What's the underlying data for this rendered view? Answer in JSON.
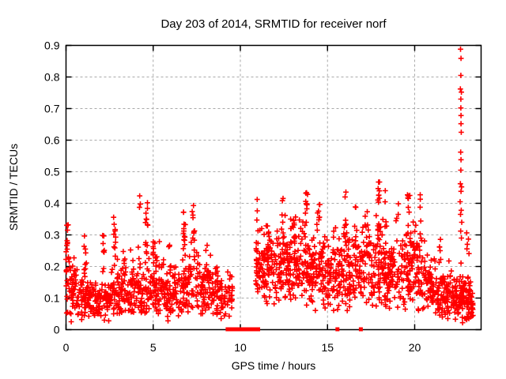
{
  "chart_data": {
    "type": "scatter",
    "title": "Day 203 of 2014, SRMTID for receiver norf",
    "xlabel": "GPS time / hours",
    "ylabel": "SRMTID / TECUs",
    "xlim": [
      0,
      23.81
    ],
    "ylim": [
      0,
      0.9
    ],
    "x_ticks": [
      0,
      5,
      10,
      15,
      20
    ],
    "y_ticks": [
      0,
      0.1,
      0.2,
      0.3,
      0.4,
      0.5,
      0.6,
      0.7,
      0.8,
      0.9
    ],
    "grid": "dashed",
    "legend": "none",
    "marker": "plus",
    "marker_color": "#ff0000",
    "grid_color": "#a9a9a9",
    "axis_color": "#000000",
    "background_color": "#ffffff",
    "seed": 7,
    "clusters": [
      [
        0.0,
        0.6,
        50,
        0.13,
        0.05,
        0.05,
        0.27
      ],
      [
        0.6,
        1.6,
        78,
        0.105,
        0.035,
        0.04,
        0.22
      ],
      [
        1.6,
        2.6,
        78,
        0.1,
        0.035,
        0.04,
        0.22
      ],
      [
        2.6,
        3.6,
        78,
        0.115,
        0.04,
        0.05,
        0.24
      ],
      [
        3.6,
        4.6,
        80,
        0.13,
        0.05,
        0.05,
        0.3
      ],
      [
        4.6,
        5.6,
        80,
        0.135,
        0.05,
        0.05,
        0.3
      ],
      [
        5.6,
        6.6,
        78,
        0.115,
        0.04,
        0.04,
        0.26
      ],
      [
        6.6,
        7.6,
        80,
        0.14,
        0.05,
        0.05,
        0.3
      ],
      [
        7.6,
        8.6,
        78,
        0.125,
        0.045,
        0.05,
        0.28
      ],
      [
        8.6,
        9.55,
        66,
        0.105,
        0.035,
        0.04,
        0.2
      ],
      [
        10.88,
        12.0,
        100,
        0.2,
        0.06,
        0.07,
        0.36
      ],
      [
        12.0,
        13.0,
        95,
        0.21,
        0.065,
        0.07,
        0.37
      ],
      [
        13.0,
        14.0,
        92,
        0.2,
        0.06,
        0.07,
        0.36
      ],
      [
        14.0,
        15.0,
        90,
        0.19,
        0.06,
        0.06,
        0.35
      ],
      [
        15.0,
        16.0,
        88,
        0.18,
        0.055,
        0.06,
        0.34
      ],
      [
        16.0,
        17.0,
        88,
        0.19,
        0.06,
        0.06,
        0.35
      ],
      [
        17.0,
        18.2,
        105,
        0.215,
        0.07,
        0.07,
        0.38
      ],
      [
        18.2,
        19.2,
        88,
        0.17,
        0.055,
        0.05,
        0.33
      ],
      [
        19.2,
        20.2,
        92,
        0.195,
        0.06,
        0.06,
        0.35
      ],
      [
        20.2,
        21.2,
        82,
        0.15,
        0.05,
        0.05,
        0.3
      ],
      [
        21.2,
        22.3,
        98,
        0.115,
        0.04,
        0.04,
        0.24
      ],
      [
        22.3,
        23.35,
        112,
        0.105,
        0.04,
        0.03,
        0.24
      ]
    ],
    "streaks": [
      [
        0.08,
        14,
        0.18,
        0.335
      ],
      [
        1.1,
        9,
        0.17,
        0.3
      ],
      [
        2.15,
        8,
        0.17,
        0.31
      ],
      [
        2.8,
        11,
        0.2,
        0.405
      ],
      [
        3.35,
        6,
        0.17,
        0.28
      ],
      [
        4.2,
        3,
        0.38,
        0.44
      ],
      [
        4.62,
        13,
        0.22,
        0.425
      ],
      [
        5.05,
        8,
        0.2,
        0.33
      ],
      [
        5.95,
        6,
        0.17,
        0.27
      ],
      [
        6.8,
        12,
        0.22,
        0.4
      ],
      [
        7.3,
        12,
        0.22,
        0.4
      ],
      [
        8.05,
        7,
        0.16,
        0.28
      ],
      [
        8.65,
        5,
        0.14,
        0.22
      ],
      [
        10.97,
        10,
        0.12,
        0.43
      ],
      [
        11.62,
        8,
        0.24,
        0.37
      ],
      [
        12.45,
        9,
        0.27,
        0.425
      ],
      [
        13.1,
        6,
        0.28,
        0.4
      ],
      [
        13.8,
        9,
        0.28,
        0.44
      ],
      [
        14.5,
        8,
        0.26,
        0.42
      ],
      [
        16.0,
        9,
        0.28,
        0.44
      ],
      [
        16.6,
        6,
        0.26,
        0.4
      ],
      [
        17.95,
        14,
        0.28,
        0.468
      ],
      [
        18.35,
        5,
        0.3,
        0.44
      ],
      [
        19.0,
        4,
        0.33,
        0.41
      ],
      [
        19.65,
        9,
        0.28,
        0.445
      ],
      [
        20.35,
        8,
        0.28,
        0.43
      ],
      [
        21.45,
        5,
        0.22,
        0.33
      ],
      [
        23.05,
        5,
        0.2,
        0.32
      ]
    ],
    "column_points": [
      [
        22.63,
        0.888
      ],
      [
        22.66,
        0.859
      ],
      [
        22.65,
        0.805
      ],
      [
        22.62,
        0.762
      ],
      [
        22.68,
        0.752
      ],
      [
        22.65,
        0.73
      ],
      [
        22.65,
        0.702
      ],
      [
        22.66,
        0.678
      ],
      [
        22.66,
        0.652
      ],
      [
        22.67,
        0.625
      ],
      [
        22.64,
        0.562
      ],
      [
        22.66,
        0.538
      ],
      [
        22.65,
        0.505
      ],
      [
        22.62,
        0.462
      ],
      [
        22.69,
        0.452
      ],
      [
        22.66,
        0.438
      ],
      [
        22.61,
        0.405
      ],
      [
        22.67,
        0.378
      ],
      [
        22.63,
        0.365
      ],
      [
        22.7,
        0.34
      ],
      [
        22.64,
        0.312
      ],
      [
        22.68,
        0.29
      ]
    ],
    "extra_points": [
      [
        0.3,
        0.025
      ],
      [
        0.9,
        0.032
      ],
      [
        2.2,
        0.03
      ],
      [
        2.45,
        0.028
      ],
      [
        5.85,
        0.028
      ],
      [
        8.9,
        0.035
      ],
      [
        21.9,
        0.035
      ],
      [
        22.75,
        0.022
      ],
      [
        22.95,
        0.035
      ],
      [
        23.1,
        0.055
      ],
      [
        23.2,
        0.04
      ]
    ],
    "zero_marker_x": [
      9.27,
      9.32,
      9.36,
      9.41,
      9.45,
      9.5,
      9.55,
      9.59,
      9.64,
      9.73,
      9.82,
      9.91,
      9.95,
      10.0,
      10.05,
      10.09,
      10.14,
      10.18,
      10.27,
      10.36,
      10.45,
      10.5,
      10.59,
      10.8,
      10.95,
      11.02,
      15.57,
      16.91
    ]
  }
}
